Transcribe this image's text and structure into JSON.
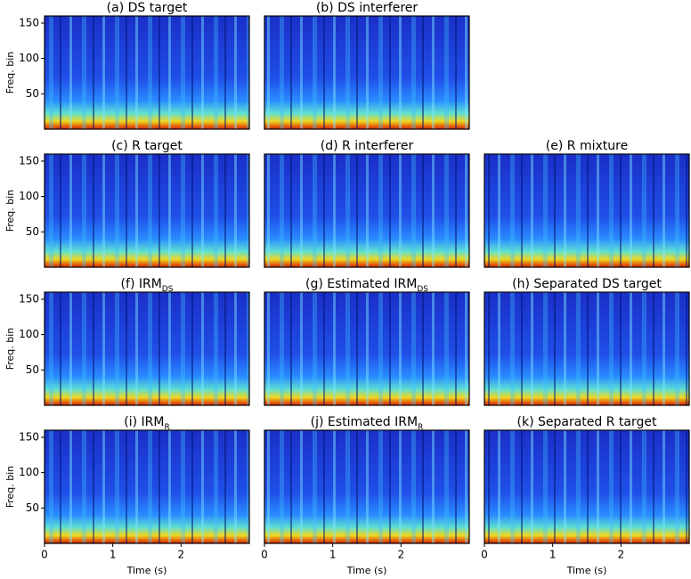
{
  "chart_data": [
    {
      "type": "spectrogram",
      "title": "(a) DS target",
      "ylabel": "Freq. bin",
      "xlim": [
        0,
        3
      ],
      "ylim": [
        0,
        160
      ],
      "yticks": [
        50,
        100,
        150
      ]
    },
    {
      "type": "spectrogram",
      "title": "(b) DS interferer",
      "xlim": [
        0,
        3
      ],
      "ylim": [
        0,
        160
      ]
    },
    {
      "type": "spectrogram",
      "title": "(c) R target",
      "ylabel": "Freq. bin",
      "xlim": [
        0,
        3
      ],
      "ylim": [
        0,
        160
      ],
      "yticks": [
        50,
        100,
        150
      ]
    },
    {
      "type": "spectrogram",
      "title": "(d) R interferer",
      "xlim": [
        0,
        3
      ],
      "ylim": [
        0,
        160
      ]
    },
    {
      "type": "spectrogram",
      "title": "(e) R mixture",
      "xlim": [
        0,
        3
      ],
      "ylim": [
        0,
        160
      ]
    },
    {
      "type": "spectrogram",
      "title": "(f) IRM",
      "title_subscript": "DS",
      "ylabel": "Freq. bin",
      "xlim": [
        0,
        3
      ],
      "ylim": [
        0,
        160
      ],
      "yticks": [
        50,
        100,
        150
      ]
    },
    {
      "type": "spectrogram",
      "title": "(g) Estimated IRM",
      "title_subscript": "DS",
      "xlim": [
        0,
        3
      ],
      "ylim": [
        0,
        160
      ]
    },
    {
      "type": "spectrogram",
      "title": "(h) Separated DS target",
      "xlim": [
        0,
        3
      ],
      "ylim": [
        0,
        160
      ]
    },
    {
      "type": "spectrogram",
      "title": "(i) IRM",
      "title_subscript": "R",
      "ylabel": "Freq. bin",
      "xlabel": "Time (s)",
      "xlim": [
        0,
        3
      ],
      "ylim": [
        0,
        160
      ],
      "yticks": [
        50,
        100,
        150
      ],
      "xticks": [
        0,
        1,
        2
      ]
    },
    {
      "type": "spectrogram",
      "title": "(j) Estimated IRM",
      "title_subscript": "R",
      "xlabel": "Time (s)",
      "xlim": [
        0,
        3
      ],
      "ylim": [
        0,
        160
      ],
      "xticks": [
        0,
        1,
        2
      ]
    },
    {
      "type": "spectrogram",
      "title": "(k) Separated R target",
      "xlabel": "Time (s)",
      "xlim": [
        0,
        3
      ],
      "ylim": [
        0,
        160
      ],
      "xticks": [
        0,
        1,
        2
      ]
    }
  ]
}
